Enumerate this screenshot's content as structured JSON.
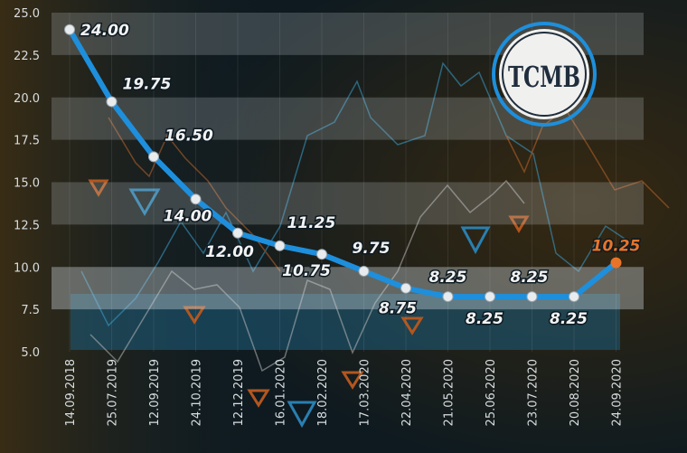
{
  "chart_data": {
    "type": "line",
    "title": "",
    "xlabel": "",
    "ylabel": "",
    "ylim": [
      5.0,
      25.0
    ],
    "yticks": [
      "25.0",
      "22.5",
      "20.0",
      "17.5",
      "15.0",
      "12.5",
      "10.0",
      "7.5",
      "5.0"
    ],
    "categories": [
      "14.09.2018",
      "25.07.2019",
      "12.09.2019",
      "24.10.2019",
      "12.12.2019",
      "16.01.2020",
      "18.02.2020",
      "17.03.2020",
      "22.04.2020",
      "21.05.2020",
      "25.06.2020",
      "23.07.2020",
      "20.08.2020",
      "24.09.2020"
    ],
    "series": [
      {
        "values": [
          24.0,
          19.75,
          16.5,
          14.0,
          12.0,
          11.25,
          10.75,
          9.75,
          8.75,
          8.25,
          8.25,
          8.25,
          8.25,
          10.25
        ],
        "labels": [
          "24.00",
          "19.75",
          "16.50",
          "14.00",
          "12.00",
          "11.25",
          "10.75",
          "9.75",
          "8.75",
          "8.25",
          "8.25",
          "8.25",
          "8.25",
          "10.25"
        ]
      }
    ],
    "grid": "horizontal bands",
    "colors": {
      "line": "#1e8fdc",
      "point": "#e8ecef",
      "label": "#f2f2f2",
      "highlight": "#e8742a"
    }
  },
  "logo": {
    "text": "TCMB"
  }
}
